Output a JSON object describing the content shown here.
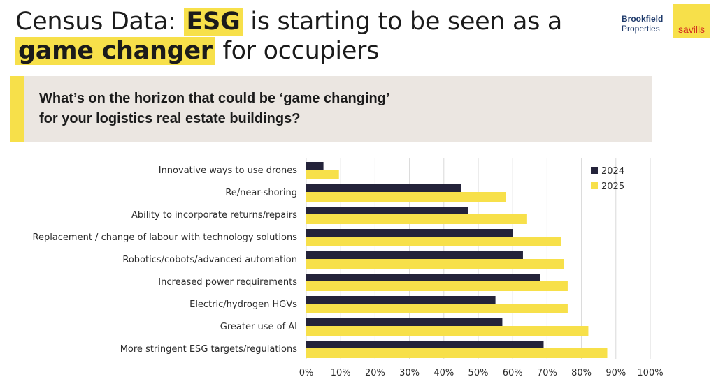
{
  "header": {
    "title_pre": "Census Data: ",
    "title_hl1": "ESG",
    "title_mid": " is starting to be seen as a",
    "title_hl2": "game changer",
    "title_post": " for occupiers"
  },
  "logos": {
    "brookfield_1": "Brookfield",
    "brookfield_2": "Properties",
    "savills": "savills"
  },
  "question": {
    "line1": "What’s on the horizon that could be ‘game changing’",
    "line2": "for your logistics real estate buildings?"
  },
  "colors": {
    "accent": "#f7e04a",
    "dark": "#24233a",
    "panel": "#ebe6e1"
  },
  "chart_data": {
    "type": "bar",
    "orientation": "horizontal",
    "categories": [
      "Innovative ways to use drones",
      "Re/near-shoring",
      "Ability to incorporate returns/repairs",
      "Replacement / change of labour with technology solutions",
      "Robotics/cobots/advanced automation",
      "Increased power requirements",
      "Electric/hydrogen HGVs",
      "Greater use of AI",
      "More stringent ESG targets/regulations"
    ],
    "series": [
      {
        "name": "2024",
        "color": "#24233a",
        "values": [
          5,
          45,
          47,
          60,
          63,
          68,
          55,
          57,
          69
        ]
      },
      {
        "name": "2025",
        "color": "#f7e04a",
        "values": [
          9.5,
          58,
          64,
          74,
          75,
          76,
          76,
          82,
          87.5
        ]
      }
    ],
    "xlim": [
      0,
      100
    ],
    "x_ticks": [
      "0%",
      "10%",
      "20%",
      "30%",
      "40%",
      "50%",
      "60%",
      "70%",
      "80%",
      "90%",
      "100%"
    ],
    "grid": "vertical",
    "legend_position": "top-right"
  }
}
